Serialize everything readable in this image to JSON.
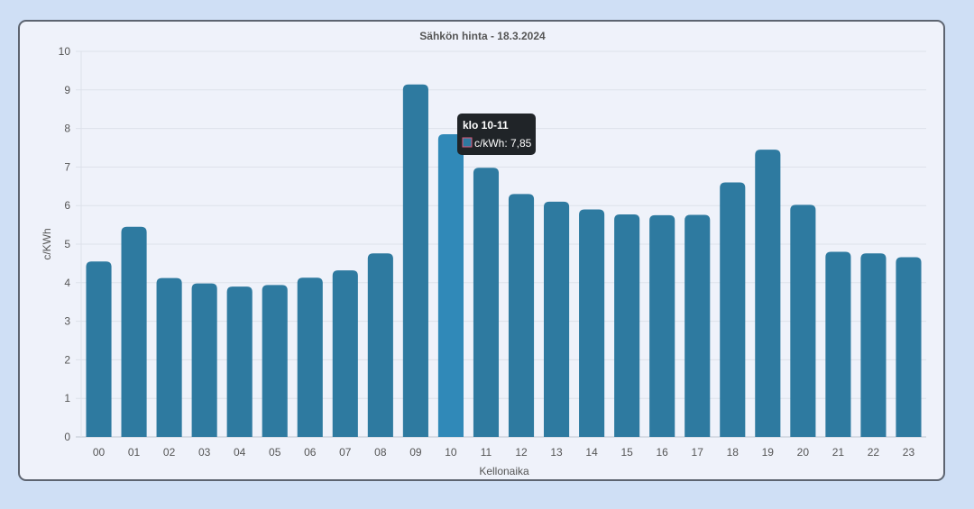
{
  "chart_data": {
    "type": "bar",
    "title": "Sähkön hinta - 18.3.2024",
    "xlabel": "Kellonaika",
    "ylabel": "c/KWh",
    "ylim": [
      0,
      10
    ],
    "yticks": [
      "0",
      "1",
      "2",
      "3",
      "4",
      "5",
      "6",
      "7",
      "8",
      "9",
      "10"
    ],
    "categories": [
      "00",
      "01",
      "02",
      "03",
      "04",
      "05",
      "06",
      "07",
      "08",
      "09",
      "10",
      "11",
      "12",
      "13",
      "14",
      "15",
      "16",
      "17",
      "18",
      "19",
      "20",
      "21",
      "22",
      "23"
    ],
    "series": [
      {
        "name": "c/kWh",
        "values": [
          4.55,
          5.45,
          4.12,
          3.98,
          3.9,
          3.94,
          4.13,
          4.32,
          4.76,
          9.14,
          7.85,
          6.98,
          6.3,
          6.1,
          5.9,
          5.77,
          5.75,
          5.76,
          6.6,
          7.45,
          6.02,
          4.8,
          4.76,
          4.66
        ]
      }
    ],
    "grid": true,
    "bar_color": "#2e7aa0",
    "highlight_color": "#3089b8",
    "highlight_index": 10,
    "tooltip": {
      "title": "klo 10-11",
      "label": "c/kWh: 7,85",
      "swatch_color": "#2e7aa0",
      "swatch_border": "#e05a7a"
    }
  }
}
